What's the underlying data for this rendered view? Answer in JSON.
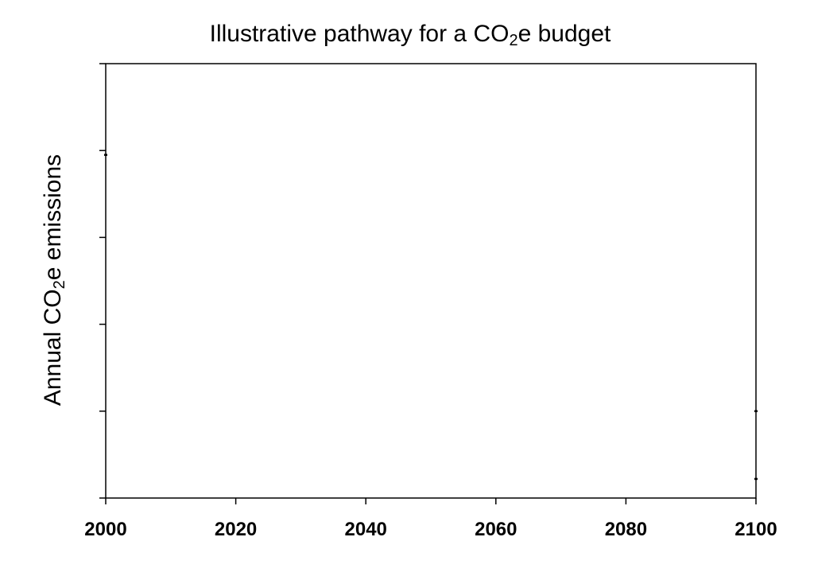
{
  "chart_data": {
    "type": "scatter",
    "title": {
      "prefix": "Illustrative pathway for a CO",
      "subscript": "2",
      "suffix": "e budget"
    },
    "ylabel": {
      "prefix": "Annual CO",
      "subscript": "2",
      "suffix": "e emissions"
    },
    "xlabel": "",
    "xlim": [
      2000,
      2100
    ],
    "ylim": [
      0,
      5
    ],
    "x_ticks": [
      2000,
      2020,
      2040,
      2060,
      2080,
      2100
    ],
    "x_tick_labels": [
      "2000",
      "2020",
      "2040",
      "2060",
      "2080",
      "2100"
    ],
    "y_ticks": [
      0,
      1,
      2,
      3,
      4,
      5
    ],
    "y_tick_labels": [],
    "grid": false,
    "series": [
      {
        "points": [
          {
            "x": 2000,
            "y": 3.95
          },
          {
            "x": 2100,
            "y": 1.0
          },
          {
            "x": 2100,
            "y": 0.22
          }
        ]
      }
    ]
  }
}
